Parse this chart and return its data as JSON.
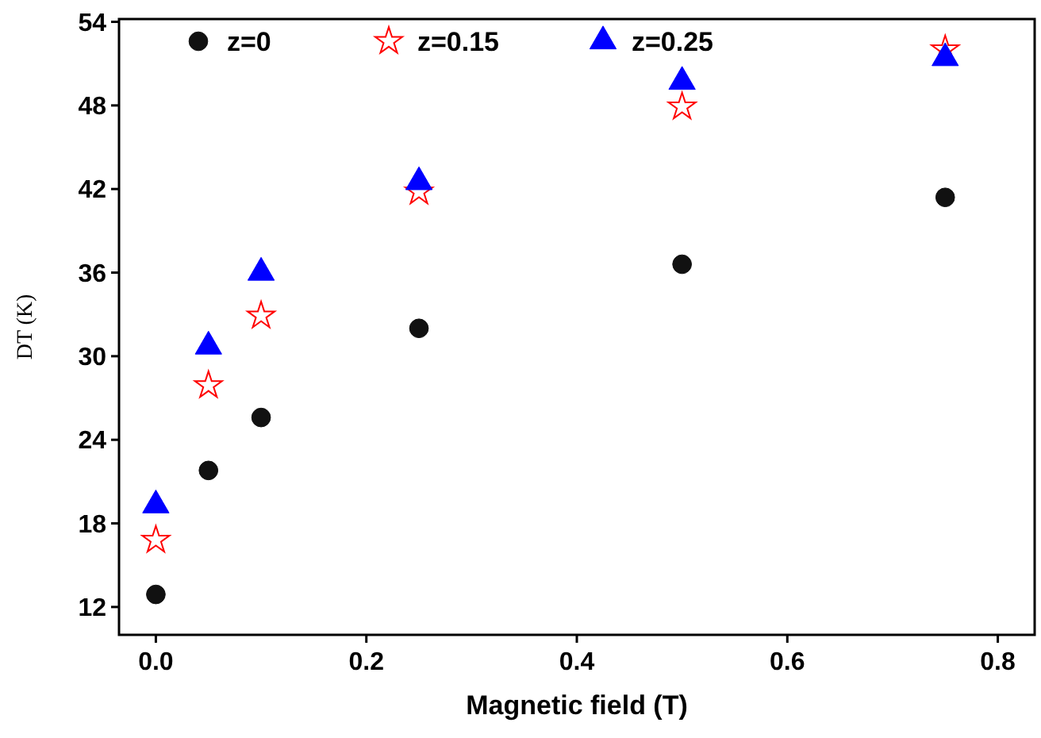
{
  "chart_data": {
    "type": "scatter",
    "xlabel": "Magnetic field (T)",
    "ylabel": "DT (K)",
    "x": [
      0,
      0.05,
      0.1,
      0.25,
      0.5,
      0.75
    ],
    "series": [
      {
        "name": "z=0",
        "color": "#111111",
        "marker": "circle",
        "values": [
          12.9,
          21.8,
          25.6,
          32.0,
          36.6,
          41.4
        ]
      },
      {
        "name": "z=0.15",
        "color": "#ff0000",
        "marker": "star",
        "values": [
          16.8,
          27.9,
          32.9,
          41.8,
          47.9,
          52.0
        ]
      },
      {
        "name": "z=0.25",
        "color": "#0000ff",
        "marker": "triangle",
        "values": [
          19.3,
          30.7,
          36.0,
          42.5,
          49.7,
          51.4
        ]
      }
    ],
    "xlim": [
      -0.035,
      0.835
    ],
    "xticks": [
      {
        "value": 0,
        "label": "0.0"
      },
      0.2,
      0.4,
      0.6,
      0.8
    ],
    "ylim": [
      10,
      54.2
    ],
    "yticks": [
      12,
      18,
      24,
      30,
      36,
      42,
      48,
      54
    ],
    "grid": false,
    "legend": "top"
  }
}
